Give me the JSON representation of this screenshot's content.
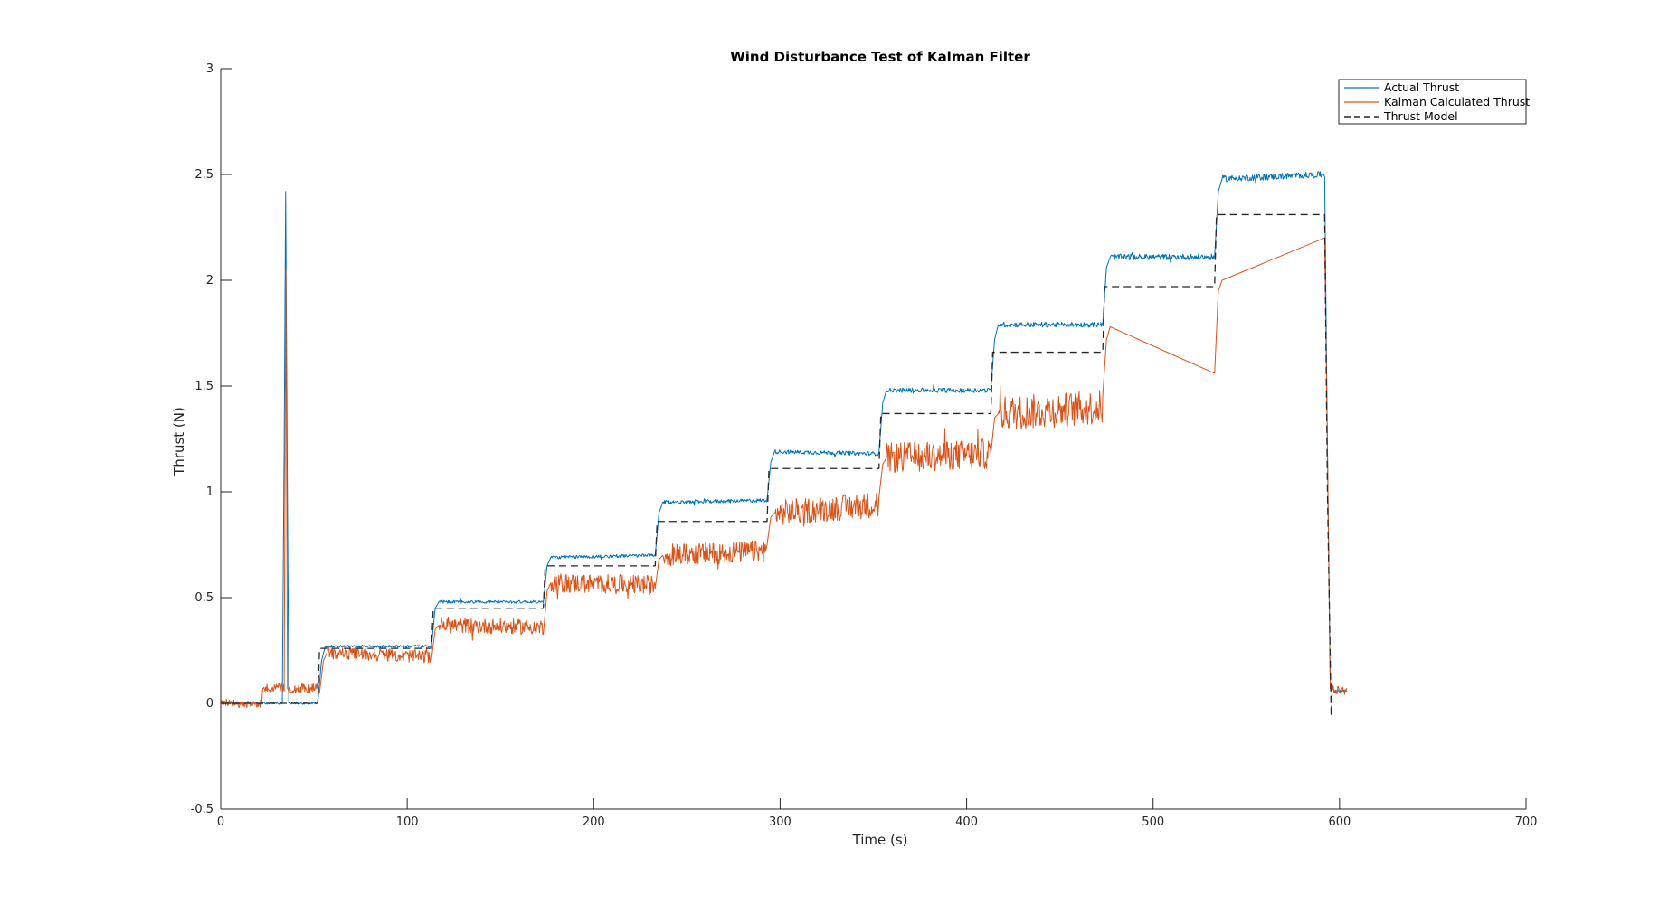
{
  "chart_data": {
    "type": "line",
    "title": "Wind Disturbance Test of Kalman Filter",
    "xlabel": "Time (s)",
    "ylabel": "Thrust (N)",
    "xlim": [
      0,
      700
    ],
    "ylim": [
      -0.5,
      3
    ],
    "xticks": [
      0,
      100,
      200,
      300,
      400,
      500,
      600,
      700
    ],
    "xtick_labels": [
      "0",
      "100",
      "200",
      "300",
      "400",
      "500",
      "600",
      "700"
    ],
    "yticks": [
      -0.5,
      0,
      0.5,
      1,
      1.5,
      2,
      2.5,
      3
    ],
    "ytick_labels": [
      "-0.5",
      "0",
      "0.5",
      "1",
      "1.5",
      "2",
      "2.5",
      "3"
    ],
    "grid": false,
    "legend_position": "top-right",
    "colors": {
      "actual": "#0072BD",
      "kalman": "#D95319",
      "model": "#262626",
      "axes": "#262626"
    },
    "series": [
      {
        "name": "Actual Thrust",
        "style": "solid",
        "noise": 0.012,
        "points": [
          [
            0,
            0.0
          ],
          [
            33,
            0.0
          ],
          [
            34,
            1.2
          ],
          [
            34.8,
            2.42
          ],
          [
            35.6,
            1.2
          ],
          [
            36.5,
            0.0
          ],
          [
            52,
            0.0
          ],
          [
            54,
            0.2
          ],
          [
            56,
            0.27
          ],
          [
            113,
            0.27
          ],
          [
            115,
            0.45
          ],
          [
            117,
            0.48
          ],
          [
            173,
            0.48
          ],
          [
            175,
            0.65
          ],
          [
            177,
            0.69
          ],
          [
            233,
            0.7
          ],
          [
            235,
            0.9
          ],
          [
            237,
            0.95
          ],
          [
            293,
            0.96
          ],
          [
            295,
            1.14
          ],
          [
            297,
            1.19
          ],
          [
            353,
            1.18
          ],
          [
            355,
            1.42
          ],
          [
            357,
            1.48
          ],
          [
            413,
            1.48
          ],
          [
            415,
            1.72
          ],
          [
            417,
            1.79
          ],
          [
            473,
            1.79
          ],
          [
            475,
            2.06
          ],
          [
            477,
            2.11
          ],
          [
            533,
            2.11
          ],
          [
            535,
            2.42
          ],
          [
            537,
            2.48
          ],
          [
            592,
            2.5
          ],
          [
            593.5,
            1.2
          ],
          [
            595,
            0.1
          ],
          [
            597,
            0.06
          ],
          [
            604,
            0.06
          ]
        ]
      },
      {
        "name": "Kalman Calculated Thrust",
        "style": "solid",
        "noise": 0.05,
        "points": [
          [
            0,
            0.0
          ],
          [
            22,
            0.0
          ],
          [
            22.5,
            0.07
          ],
          [
            34,
            0.07
          ],
          [
            34.9,
            2.05
          ],
          [
            35.8,
            0.07
          ],
          [
            53,
            0.07
          ],
          [
            55,
            0.2
          ],
          [
            57,
            0.24
          ],
          [
            113,
            0.22
          ],
          [
            115,
            0.35
          ],
          [
            117,
            0.37
          ],
          [
            173,
            0.36
          ],
          [
            175,
            0.53
          ],
          [
            177,
            0.57
          ],
          [
            233,
            0.56
          ],
          [
            235,
            0.68
          ],
          [
            237,
            0.7
          ],
          [
            293,
            0.72
          ],
          [
            295,
            0.88
          ],
          [
            297,
            0.9
          ],
          [
            353,
            0.94
          ],
          [
            355,
            1.13
          ],
          [
            357,
            1.16
          ],
          [
            413,
            1.18
          ],
          [
            415,
            1.35
          ],
          [
            417,
            1.37
          ],
          [
            473,
            1.4
          ],
          [
            475,
            1.72
          ],
          [
            477,
            1.78
          ],
          [
            533,
            1.56
          ],
          [
            535,
            1.95
          ],
          [
            537,
            2.0
          ],
          [
            592,
            2.2
          ],
          [
            593.5,
            1.2
          ],
          [
            595,
            0.07
          ],
          [
            604,
            0.06
          ]
        ]
      },
      {
        "name": "Thrust Model",
        "style": "dashed",
        "noise": 0,
        "points": [
          [
            0,
            0.0
          ],
          [
            52,
            0.0
          ],
          [
            53,
            0.26
          ],
          [
            113,
            0.26
          ],
          [
            114,
            0.45
          ],
          [
            173,
            0.45
          ],
          [
            174,
            0.65
          ],
          [
            233,
            0.65
          ],
          [
            234,
            0.86
          ],
          [
            293,
            0.86
          ],
          [
            294,
            1.11
          ],
          [
            353,
            1.11
          ],
          [
            354,
            1.37
          ],
          [
            413,
            1.37
          ],
          [
            414,
            1.66
          ],
          [
            473,
            1.66
          ],
          [
            474,
            1.97
          ],
          [
            533,
            1.97
          ],
          [
            534,
            2.31
          ],
          [
            592,
            2.31
          ],
          [
            593.5,
            1.0
          ],
          [
            595.5,
            -0.06
          ],
          [
            596,
            0.05
          ]
        ]
      }
    ]
  }
}
